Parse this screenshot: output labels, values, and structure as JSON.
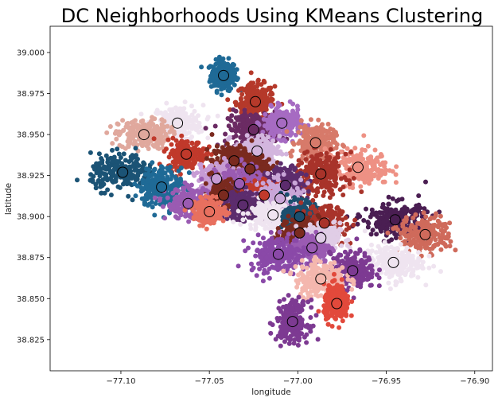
{
  "chart_data": {
    "type": "scatter",
    "title": "DC Neighborhoods Using KMeans Clustering",
    "xlabel": "longitude",
    "ylabel": "latitude",
    "xlim": [
      -77.14,
      -76.89
    ],
    "ylim": [
      38.806,
      39.016
    ],
    "xticks": [
      -77.1,
      -77.05,
      -77.0,
      -76.95,
      -76.9
    ],
    "xtick_labels": [
      "−77.10",
      "−77.05",
      "−77.00",
      "−76.95",
      "−76.90"
    ],
    "yticks": [
      38.825,
      38.85,
      38.875,
      38.9,
      38.925,
      38.95,
      38.975,
      39.0
    ],
    "ytick_labels": [
      "38.825",
      "38.850",
      "38.875",
      "38.900",
      "38.925",
      "38.950",
      "38.975",
      "39.000"
    ],
    "grid": false,
    "legend": "none",
    "clusters": [
      {
        "x": -77.042,
        "y": 38.986,
        "color": "#1f6a96",
        "spread": [
          0.004,
          0.005
        ]
      },
      {
        "x": -77.024,
        "y": 38.97,
        "color": "#b5392a",
        "spread": [
          0.006,
          0.006
        ]
      },
      {
        "x": -77.068,
        "y": 38.957,
        "color": "#efe4f0",
        "spread": [
          0.008,
          0.006
        ]
      },
      {
        "x": -77.087,
        "y": 38.95,
        "color": "#e0a89d",
        "spread": [
          0.008,
          0.005
        ]
      },
      {
        "x": -77.025,
        "y": 38.953,
        "color": "#6b2b63",
        "spread": [
          0.008,
          0.006
        ]
      },
      {
        "x": -77.009,
        "y": 38.957,
        "color": "#a66bc2",
        "spread": [
          0.006,
          0.005
        ]
      },
      {
        "x": -76.99,
        "y": 38.945,
        "color": "#d77a6a",
        "spread": [
          0.006,
          0.006
        ]
      },
      {
        "x": -77.023,
        "y": 38.94,
        "color": "#d3b6de",
        "spread": [
          0.007,
          0.005
        ]
      },
      {
        "x": -77.063,
        "y": 38.938,
        "color": "#c0392b",
        "spread": [
          0.006,
          0.005
        ]
      },
      {
        "x": -77.036,
        "y": 38.934,
        "color": "#7a2a1f",
        "spread": [
          0.007,
          0.005
        ]
      },
      {
        "x": -76.966,
        "y": 38.93,
        "color": "#ee9184",
        "spread": [
          0.01,
          0.006
        ]
      },
      {
        "x": -77.027,
        "y": 38.929,
        "color": "#7a2a1f",
        "spread": [
          0.007,
          0.005
        ]
      },
      {
        "x": -77.099,
        "y": 38.927,
        "color": "#1b5375",
        "spread": [
          0.01,
          0.006
        ]
      },
      {
        "x": -76.987,
        "y": 38.926,
        "color": "#a8332a",
        "spread": [
          0.008,
          0.007
        ]
      },
      {
        "x": -77.046,
        "y": 38.923,
        "color": "#c79bd4",
        "spread": [
          0.006,
          0.005
        ]
      },
      {
        "x": -77.033,
        "y": 38.92,
        "color": "#9a5bb2",
        "spread": [
          0.007,
          0.006
        ]
      },
      {
        "x": -77.007,
        "y": 38.919,
        "color": "#5c2c6d",
        "spread": [
          0.006,
          0.006
        ]
      },
      {
        "x": -77.077,
        "y": 38.918,
        "color": "#1f6a96",
        "spread": [
          0.007,
          0.007
        ]
      },
      {
        "x": -77.042,
        "y": 38.913,
        "color": "#7a2a1f",
        "spread": [
          0.006,
          0.005
        ]
      },
      {
        "x": -77.019,
        "y": 38.913,
        "color": "#c0392b",
        "spread": [
          0.006,
          0.005
        ]
      },
      {
        "x": -77.01,
        "y": 38.911,
        "color": "#c9a6d8",
        "spread": [
          0.007,
          0.006
        ]
      },
      {
        "x": -77.062,
        "y": 38.908,
        "color": "#9a5bb2",
        "spread": [
          0.007,
          0.005
        ]
      },
      {
        "x": -77.031,
        "y": 38.907,
        "color": "#5c2c6d",
        "spread": [
          0.006,
          0.005
        ]
      },
      {
        "x": -77.05,
        "y": 38.903,
        "color": "#e8705f",
        "spread": [
          0.005,
          0.004
        ]
      },
      {
        "x": -77.014,
        "y": 38.901,
        "color": "#efe4f0",
        "spread": [
          0.008,
          0.005
        ]
      },
      {
        "x": -76.999,
        "y": 38.9,
        "color": "#1b4f6e",
        "spread": [
          0.005,
          0.005
        ]
      },
      {
        "x": -76.945,
        "y": 38.898,
        "color": "#4a1e52",
        "spread": [
          0.01,
          0.006
        ]
      },
      {
        "x": -76.985,
        "y": 38.896,
        "color": "#a8332a",
        "spread": [
          0.007,
          0.006
        ]
      },
      {
        "x": -76.999,
        "y": 38.89,
        "color": "#7a2a1f",
        "spread": [
          0.006,
          0.005
        ]
      },
      {
        "x": -76.928,
        "y": 38.889,
        "color": "#cf6a5b",
        "spread": [
          0.008,
          0.006
        ]
      },
      {
        "x": -76.987,
        "y": 38.887,
        "color": "#e0cde6",
        "spread": [
          0.006,
          0.005
        ]
      },
      {
        "x": -76.992,
        "y": 38.881,
        "color": "#9a5bb2",
        "spread": [
          0.006,
          0.005
        ]
      },
      {
        "x": -77.011,
        "y": 38.877,
        "color": "#8a49a8",
        "spread": [
          0.009,
          0.006
        ]
      },
      {
        "x": -76.946,
        "y": 38.872,
        "color": "#efe4f0",
        "spread": [
          0.009,
          0.006
        ]
      },
      {
        "x": -76.969,
        "y": 38.867,
        "color": "#7d3a92",
        "spread": [
          0.007,
          0.006
        ]
      },
      {
        "x": -76.987,
        "y": 38.862,
        "color": "#f4b7ae",
        "spread": [
          0.008,
          0.006
        ]
      },
      {
        "x": -76.978,
        "y": 38.847,
        "color": "#e2493b",
        "spread": [
          0.004,
          0.006
        ]
      },
      {
        "x": -77.003,
        "y": 38.836,
        "color": "#7d3a92",
        "spread": [
          0.005,
          0.007
        ]
      }
    ]
  }
}
